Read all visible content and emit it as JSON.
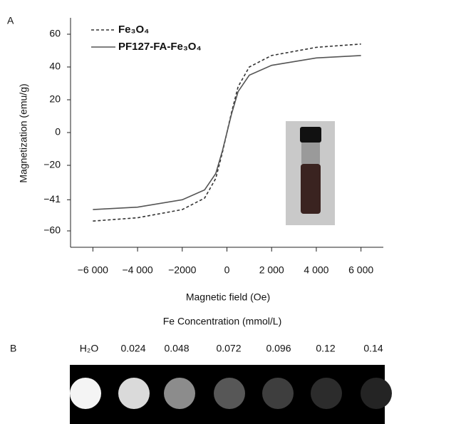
{
  "chart_data": {
    "type": "line",
    "x_label": "Magnetic field (Oe)",
    "y_label": "Magnetization (emu/g)",
    "x": [
      -6000,
      -4000,
      -2000,
      -1000,
      -500,
      -200,
      0,
      200,
      500,
      1000,
      2000,
      4000,
      6000
    ],
    "series": [
      {
        "name": "Fe₃O₄",
        "color": "#333333",
        "linestyle": "dashed",
        "values": [
          -54,
          -52,
          -47,
          -40,
          -28,
          -12,
          0,
          12,
          28,
          40,
          47,
          52,
          54
        ]
      },
      {
        "name": "PF127-FA-Fe₃O₄",
        "color": "#555555",
        "linestyle": "solid",
        "values": [
          -47,
          -45.5,
          -41,
          -35,
          -25,
          -11,
          0,
          11,
          25,
          35,
          41,
          45.5,
          47
        ]
      }
    ],
    "xlim": [
      -7000,
      7000
    ],
    "xticks": [
      {
        "value": -6000,
        "label": "−6 000"
      },
      {
        "value": -4000,
        "label": "−4 000"
      },
      {
        "value": -2000,
        "label": "−2000"
      },
      0,
      {
        "value": 2000,
        "label": "2 000"
      },
      {
        "value": 4000,
        "label": "4 000"
      },
      {
        "value": 6000,
        "label": "6 000"
      }
    ],
    "ylim": [
      -70,
      70
    ],
    "yticks": [
      60,
      40,
      20,
      0,
      {
        "value": -20,
        "label": "−20"
      },
      {
        "value": -41,
        "label": "−41"
      },
      {
        "value": -60,
        "label": "−60"
      }
    ],
    "grid": false,
    "legend": "upper left"
  },
  "panel_labels": [
    "A",
    "B"
  ],
  "phantom": {
    "title": "Fe Concentration (mmol/L)",
    "labels": [
      "H₂O",
      "0.024",
      "0.048",
      "0.072",
      "0.096",
      "0.12",
      "0.14"
    ],
    "colors": [
      "#f4f4f4",
      "#dadada",
      "#8c8c8c",
      "#575757",
      "#3e3e3e",
      "#2c2c2c",
      "#242424"
    ]
  }
}
